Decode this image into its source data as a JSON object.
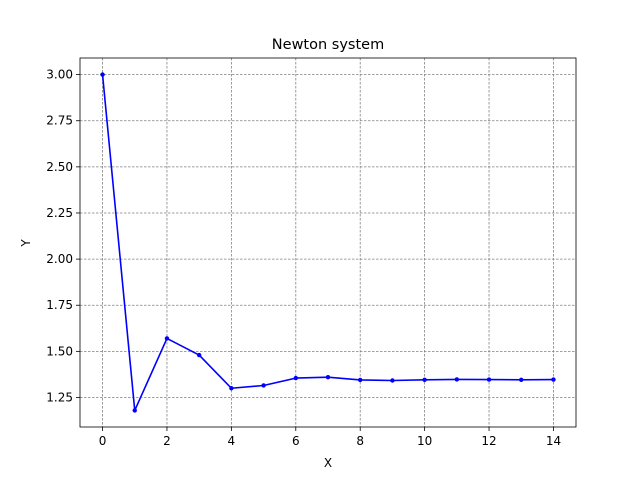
{
  "chart_data": {
    "type": "line",
    "title": "Newton system",
    "xlabel": "X",
    "ylabel": "Y",
    "xlim": [
      -0.7,
      14.7
    ],
    "ylim": [
      1.09,
      3.09
    ],
    "xticks": [
      0,
      2,
      4,
      6,
      8,
      10,
      12,
      14
    ],
    "yticks": [
      1.25,
      1.5,
      1.75,
      2.0,
      2.25,
      2.5,
      2.75,
      3.0
    ],
    "grid": true,
    "line_color": "#0000ff",
    "marker": "dot",
    "series": [
      {
        "x": [
          0,
          1,
          2,
          3,
          4,
          5,
          6,
          7,
          8,
          9,
          10,
          11,
          12,
          13,
          14
        ],
        "values": [
          3.0,
          1.18,
          1.57,
          1.48,
          1.3,
          1.315,
          1.355,
          1.36,
          1.345,
          1.342,
          1.346,
          1.348,
          1.347,
          1.346,
          1.347
        ]
      }
    ]
  }
}
